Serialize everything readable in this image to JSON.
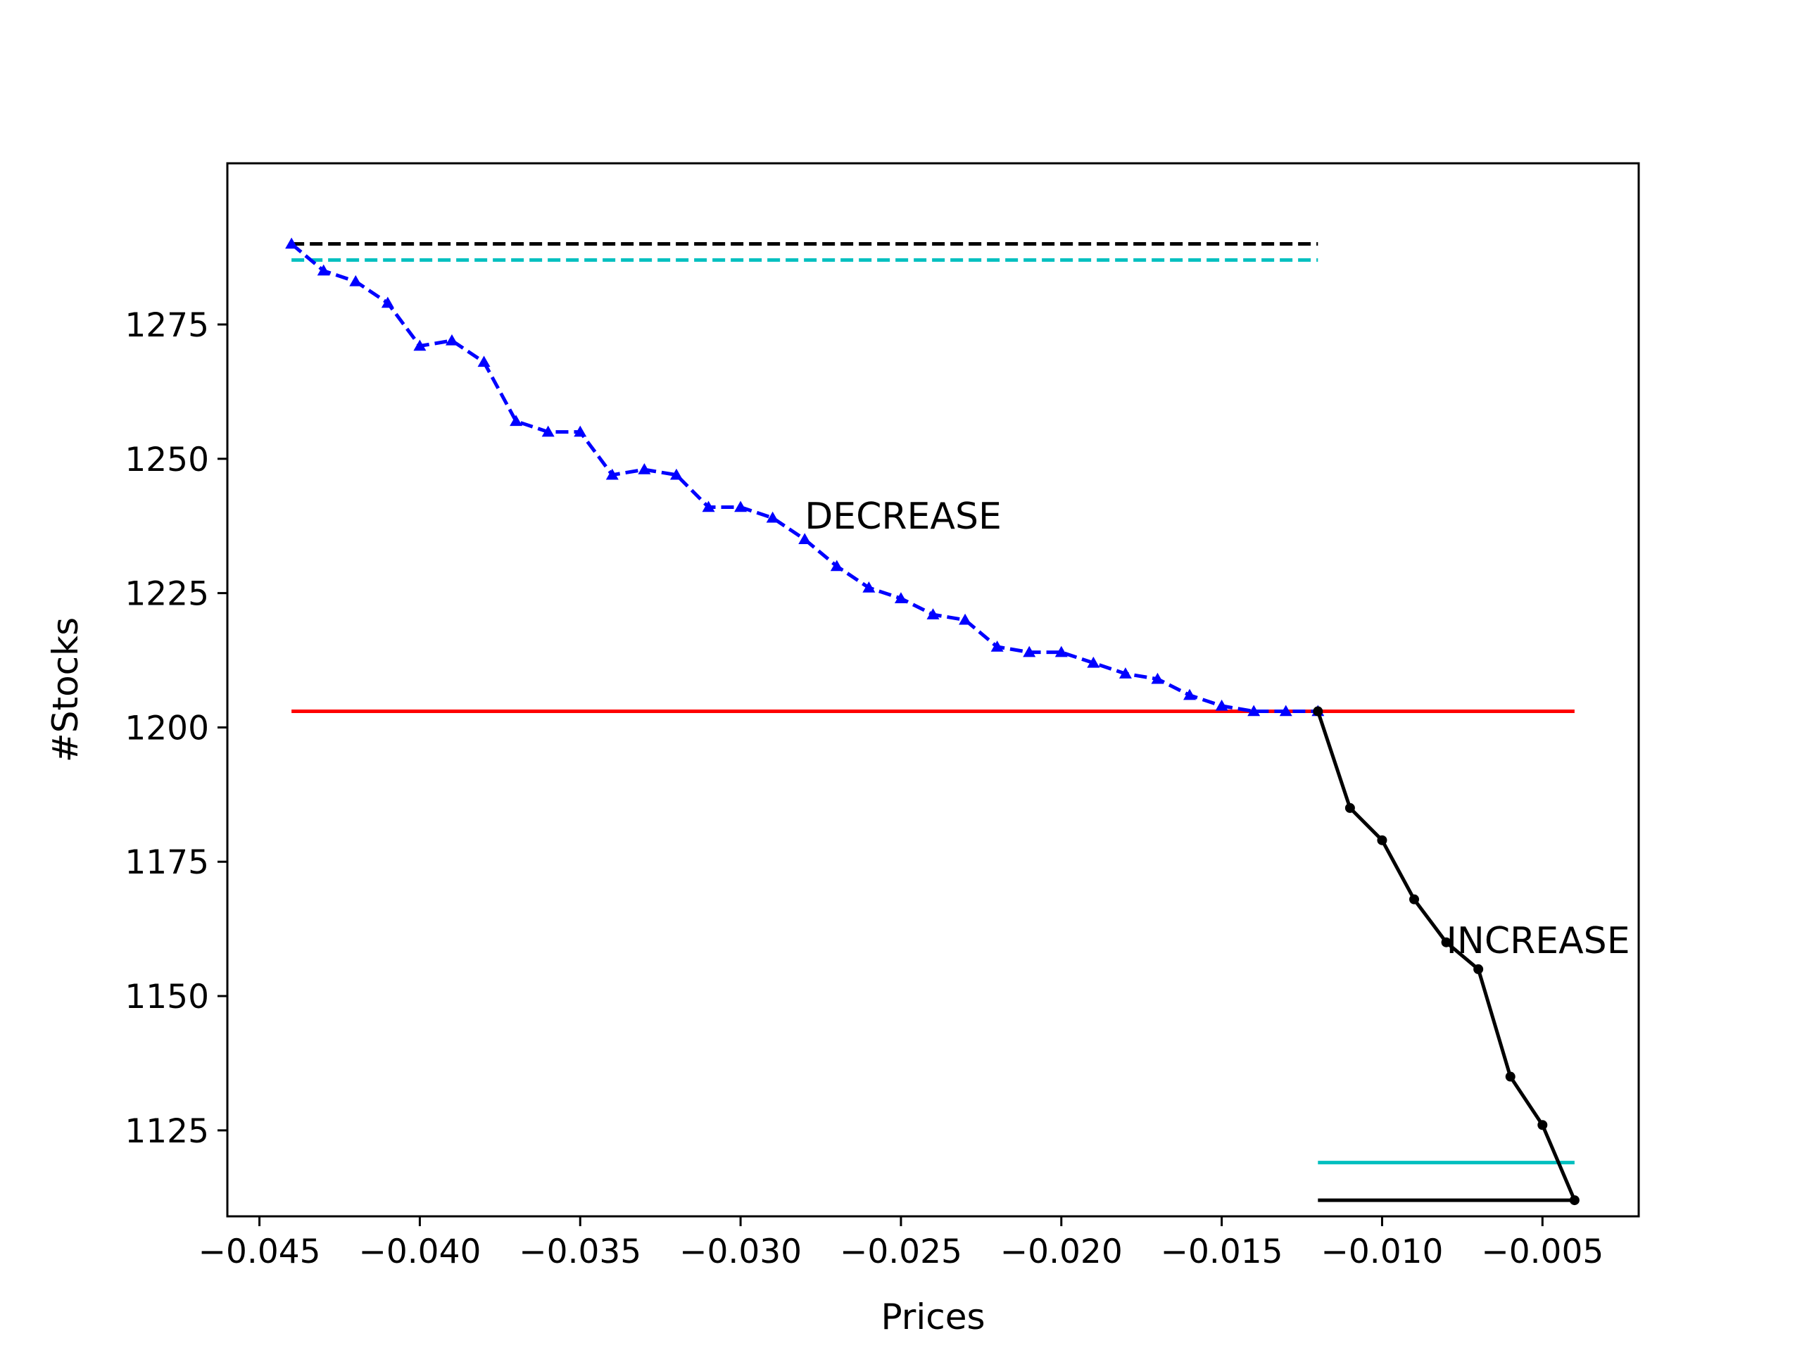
{
  "chart_data": {
    "type": "line",
    "title": "",
    "xlabel": "Prices",
    "ylabel": "#Stocks",
    "xlim": [
      -0.046,
      -0.002
    ],
    "ylim": [
      1109,
      1305
    ],
    "xticks": [
      -0.045,
      -0.04,
      -0.035,
      -0.03,
      -0.025,
      -0.02,
      -0.015,
      -0.01,
      -0.005
    ],
    "xtick_labels": [
      "−0.045",
      "−0.040",
      "−0.035",
      "−0.030",
      "−0.025",
      "−0.020",
      "−0.015",
      "−0.010",
      "−0.005"
    ],
    "yticks": [
      1125,
      1150,
      1175,
      1200,
      1225,
      1250,
      1275
    ],
    "ytick_labels": [
      "1125",
      "1150",
      "1175",
      "1200",
      "1225",
      "1250",
      "1275"
    ],
    "grid": false,
    "legend": null,
    "series": [
      {
        "style": "dashed-triangle",
        "color": "#0000ff",
        "x": [
          -0.044,
          -0.043,
          -0.042,
          -0.041,
          -0.04,
          -0.039,
          -0.038,
          -0.037,
          -0.036,
          -0.035,
          -0.034,
          -0.033,
          -0.032,
          -0.031,
          -0.03,
          -0.029,
          -0.028,
          -0.027,
          -0.026,
          -0.025,
          -0.024,
          -0.023,
          -0.022,
          -0.021,
          -0.02,
          -0.019,
          -0.018,
          -0.017,
          -0.016,
          -0.015,
          -0.014,
          -0.013,
          -0.012
        ],
        "y": [
          1290,
          1285,
          1283,
          1279,
          1271,
          1272,
          1268,
          1257,
          1255,
          1255,
          1247,
          1248,
          1247,
          1241,
          1241,
          1239,
          1235,
          1230,
          1226,
          1224,
          1221,
          1220,
          1215,
          1214,
          1214,
          1212,
          1210,
          1209,
          1206,
          1204,
          1203,
          1203,
          1203
        ]
      },
      {
        "style": "solid-dot",
        "color": "#000000",
        "x": [
          -0.012,
          -0.011,
          -0.01,
          -0.009,
          -0.008,
          -0.007,
          -0.006,
          -0.005,
          -0.004
        ],
        "y": [
          1203,
          1185,
          1179,
          1168,
          1160,
          1155,
          1135,
          1126,
          1112
        ]
      }
    ],
    "reference_lines": [
      {
        "color": "#000000",
        "style": "dashed",
        "x": [
          -0.044,
          -0.012
        ],
        "y": 1290
      },
      {
        "color": "#00bfbf",
        "style": "dashed",
        "x": [
          -0.044,
          -0.012
        ],
        "y": 1287
      },
      {
        "color": "#ff0000",
        "style": "solid",
        "x": [
          -0.044,
          -0.004
        ],
        "y": 1203
      },
      {
        "color": "#00bfbf",
        "style": "solid",
        "x": [
          -0.012,
          -0.004
        ],
        "y": 1119
      },
      {
        "color": "#000000",
        "style": "solid",
        "x": [
          -0.012,
          -0.004
        ],
        "y": 1112
      }
    ],
    "annotations": [
      {
        "text": "DECREASE",
        "x": -0.028,
        "y": 1237
      },
      {
        "text": "INCREASE",
        "x": -0.008,
        "y": 1158
      }
    ]
  }
}
